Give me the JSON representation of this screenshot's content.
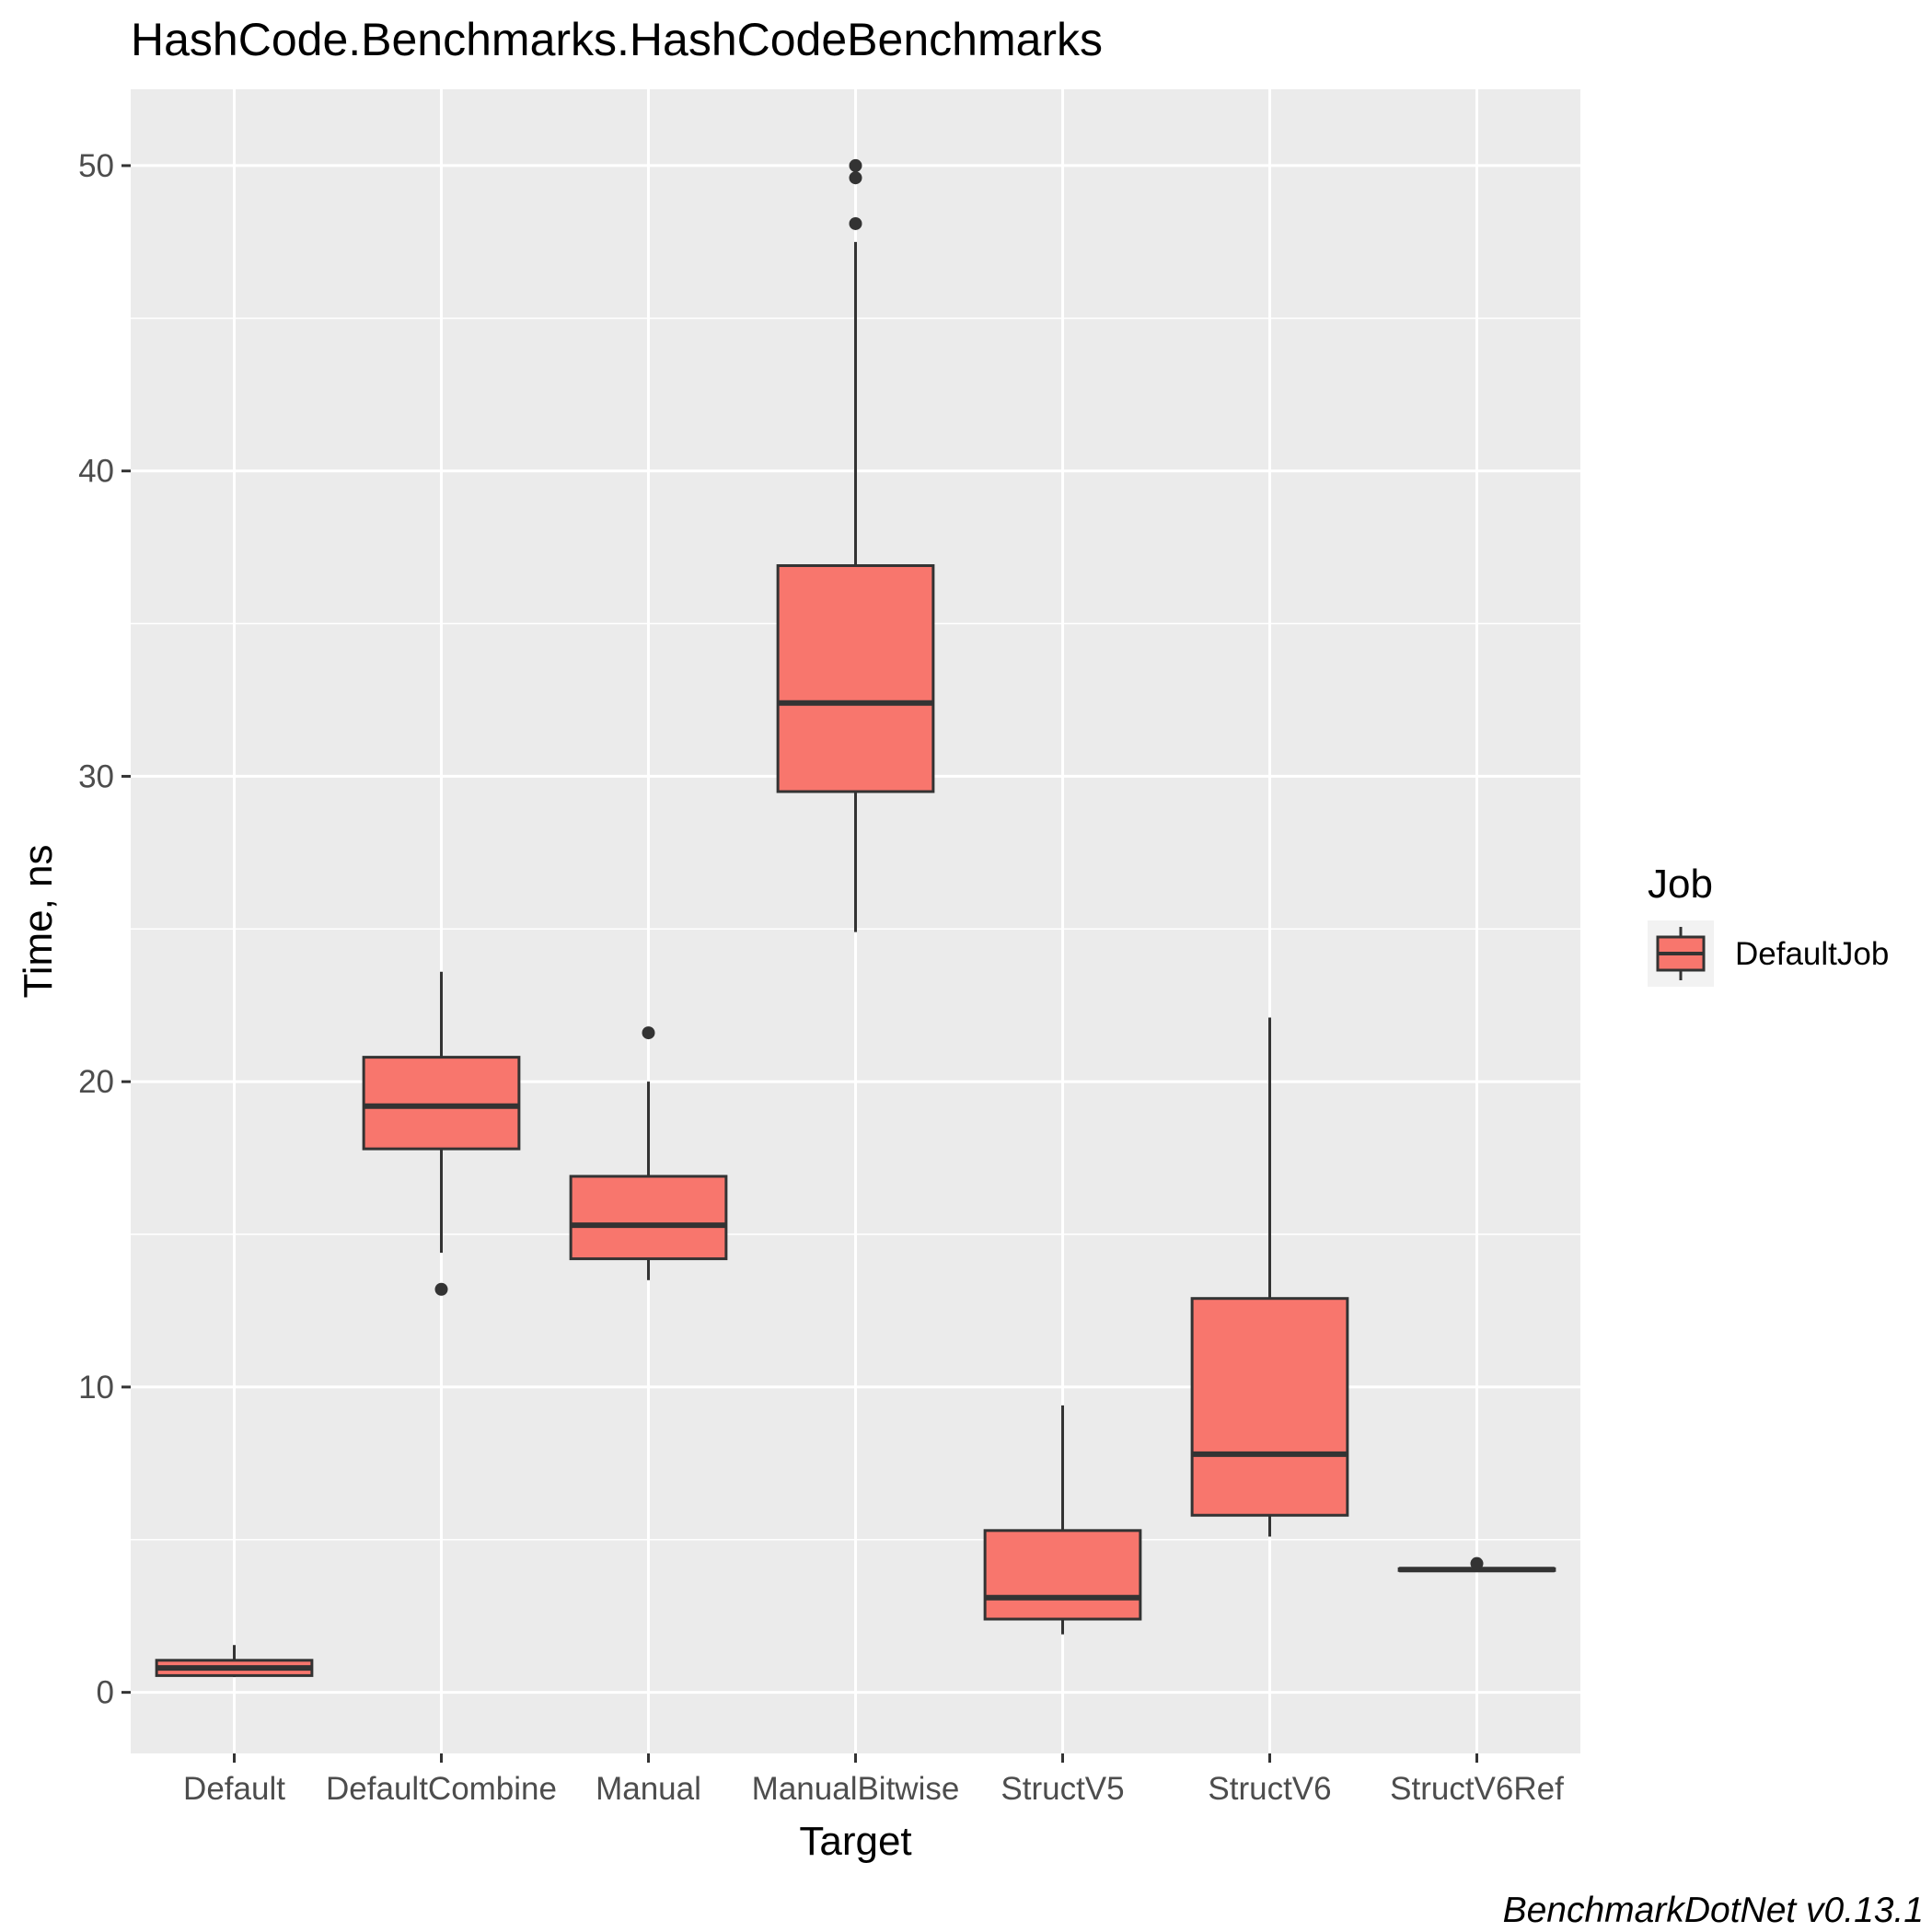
{
  "chart_data": {
    "type": "boxplot",
    "title": "HashCode.Benchmarks.HashCodeBenchmarks",
    "xlabel": "Target",
    "ylabel": "Time, ns",
    "ylim": [
      -2,
      52.5
    ],
    "yticks": [
      0,
      10,
      20,
      30,
      40,
      50
    ],
    "grid": true,
    "fill_color": "#F8766D",
    "outline_color": "#333333",
    "panel_color": "#EBEBEB",
    "categories": [
      "Default",
      "DefaultCombine",
      "Manual",
      "ManualBitwise",
      "StructV5",
      "StructV6",
      "StructV6Ref"
    ],
    "series": [
      {
        "name": "DefaultJob",
        "boxes": [
          {
            "category": "Default",
            "whisker_low": 0.5,
            "q1": 0.55,
            "median": 0.8,
            "q3": 1.05,
            "whisker_high": 1.55,
            "outliers": []
          },
          {
            "category": "DefaultCombine",
            "whisker_low": 14.4,
            "q1": 17.8,
            "median": 19.2,
            "q3": 20.8,
            "whisker_high": 23.6,
            "outliers": [
              13.2
            ]
          },
          {
            "category": "Manual",
            "whisker_low": 13.5,
            "q1": 14.2,
            "median": 15.3,
            "q3": 16.9,
            "whisker_high": 20.0,
            "outliers": [
              21.6
            ]
          },
          {
            "category": "ManualBitwise",
            "whisker_low": 24.9,
            "q1": 29.5,
            "median": 32.4,
            "q3": 36.9,
            "whisker_high": 47.5,
            "outliers": [
              48.1,
              49.6,
              50.0
            ]
          },
          {
            "category": "StructV5",
            "whisker_low": 1.9,
            "q1": 2.4,
            "median": 3.1,
            "q3": 5.3,
            "whisker_high": 9.4,
            "outliers": []
          },
          {
            "category": "StructV6",
            "whisker_low": 5.1,
            "q1": 5.8,
            "median": 7.8,
            "q3": 12.9,
            "whisker_high": 22.1,
            "outliers": []
          },
          {
            "category": "StructV6Ref",
            "whisker_low": 3.97,
            "q1": 3.99,
            "median": 4.02,
            "q3": 4.05,
            "whisker_high": 4.08,
            "outliers": [
              4.22
            ]
          }
        ]
      }
    ],
    "legend": {
      "title": "Job",
      "entries": [
        "DefaultJob"
      ],
      "position": "right"
    },
    "caption": "BenchmarkDotNet v0.13.1"
  }
}
